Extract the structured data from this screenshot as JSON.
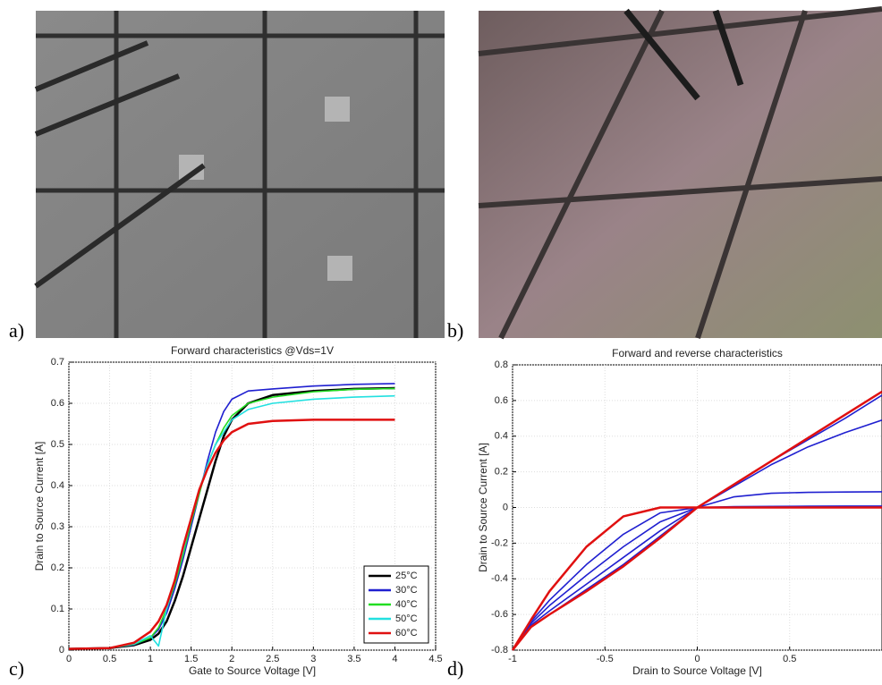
{
  "panel_labels": [
    "a)",
    "b)",
    "c)",
    "d)"
  ],
  "chart_data": [
    {
      "type": "line",
      "title": "Forward characteristics @Vds=1V",
      "x_label": "Gate to Source Voltage [V]",
      "y_label": "Drain to Source Current [A]",
      "x": [
        0,
        0.5,
        0.8,
        1.0,
        1.1,
        1.2,
        1.3,
        1.4,
        1.5,
        1.6,
        1.7,
        1.8,
        1.9,
        2.0,
        2.2,
        2.5,
        3.0,
        3.5,
        4.0
      ],
      "series": [
        {
          "name": "25°C",
          "color": "#000000",
          "values": [
            0.003,
            0.005,
            0.012,
            0.025,
            0.04,
            0.07,
            0.12,
            0.18,
            0.25,
            0.32,
            0.39,
            0.46,
            0.52,
            0.56,
            0.6,
            0.62,
            0.63,
            0.635,
            0.637
          ]
        },
        {
          "name": "30°C",
          "color": "#1f1fd0",
          "values": [
            0.003,
            0.005,
            0.013,
            0.03,
            0.05,
            0.09,
            0.15,
            0.22,
            0.3,
            0.38,
            0.46,
            0.53,
            0.58,
            0.61,
            0.63,
            0.635,
            0.642,
            0.646,
            0.648
          ]
        },
        {
          "name": "40°C",
          "color": "#22dd22",
          "values": [
            0.003,
            0.005,
            0.014,
            0.03,
            0.055,
            0.1,
            0.16,
            0.23,
            0.31,
            0.38,
            0.45,
            0.5,
            0.54,
            0.57,
            0.6,
            0.615,
            0.628,
            0.634,
            0.636
          ]
        },
        {
          "name": "50°C",
          "color": "#22e0e0",
          "values": [
            0.003,
            0.005,
            0.015,
            0.035,
            0.01,
            0.1,
            0.17,
            0.24,
            0.32,
            0.39,
            0.45,
            0.5,
            0.53,
            0.56,
            0.585,
            0.6,
            0.61,
            0.615,
            0.618
          ]
        },
        {
          "name": "60°C",
          "color": "#e01010",
          "values": [
            0.003,
            0.005,
            0.018,
            0.045,
            0.07,
            0.11,
            0.17,
            0.25,
            0.32,
            0.39,
            0.44,
            0.48,
            0.51,
            0.53,
            0.55,
            0.557,
            0.56,
            0.56,
            0.56
          ]
        }
      ],
      "xlim": [
        0,
        4.5
      ],
      "ylim": [
        0,
        0.7
      ],
      "xticks": [
        0,
        0.5,
        1,
        1.5,
        2,
        2.5,
        3,
        3.5,
        4,
        4.5
      ],
      "yticks": [
        0,
        0.1,
        0.2,
        0.3,
        0.4,
        0.5,
        0.6,
        0.7
      ],
      "grid": true,
      "legend": "lower right"
    },
    {
      "type": "line",
      "title": "Forward and reverse characteristics",
      "x_label": "Drain to Source Voltage [V]",
      "y_label": "Drain to Source Current [A]",
      "x": [
        -1,
        -0.9,
        -0.8,
        -0.6,
        -0.4,
        -0.2,
        0,
        0.2,
        0.4,
        0.6,
        0.8,
        1
      ],
      "series": [
        {
          "color": "#1f1fd0",
          "values": [
            -0.8,
            -0.66,
            -0.58,
            -0.43,
            -0.28,
            -0.13,
            0,
            0.12,
            0.24,
            0.34,
            0.42,
            0.49
          ]
        },
        {
          "color": "#1f1fd0",
          "values": [
            -0.8,
            -0.65,
            -0.55,
            -0.38,
            -0.22,
            -0.08,
            0,
            0.06,
            0.08,
            0.085,
            0.087,
            0.088
          ]
        },
        {
          "color": "#1f1fd0",
          "values": [
            -0.8,
            -0.64,
            -0.52,
            -0.32,
            -0.15,
            -0.03,
            0,
            0.005,
            0.006,
            0.007,
            0.008,
            0.008
          ]
        },
        {
          "color": "#1f1fd0",
          "values": [
            -0.8,
            -0.67,
            -0.6,
            -0.46,
            -0.32,
            -0.16,
            0,
            0.13,
            0.26,
            0.38,
            0.5,
            0.63
          ]
        },
        {
          "color": "#e01010",
          "values": [
            -0.8,
            -0.67,
            -0.6,
            -0.47,
            -0.33,
            -0.17,
            0,
            0.13,
            0.26,
            0.39,
            0.52,
            0.65
          ]
        },
        {
          "color": "#e01010",
          "values": [
            -0.8,
            -0.63,
            -0.47,
            -0.22,
            -0.05,
            0,
            0,
            0,
            0,
            0,
            0,
            0
          ]
        }
      ],
      "xlim": [
        -1,
        1
      ],
      "ylim": [
        -0.8,
        0.8
      ],
      "xticks": [
        -1,
        -0.5,
        0,
        0.5
      ],
      "yticks": [
        -0.8,
        -0.6,
        -0.4,
        -0.2,
        0,
        0.2,
        0.4,
        0.6,
        0.8
      ],
      "grid": true
    }
  ]
}
